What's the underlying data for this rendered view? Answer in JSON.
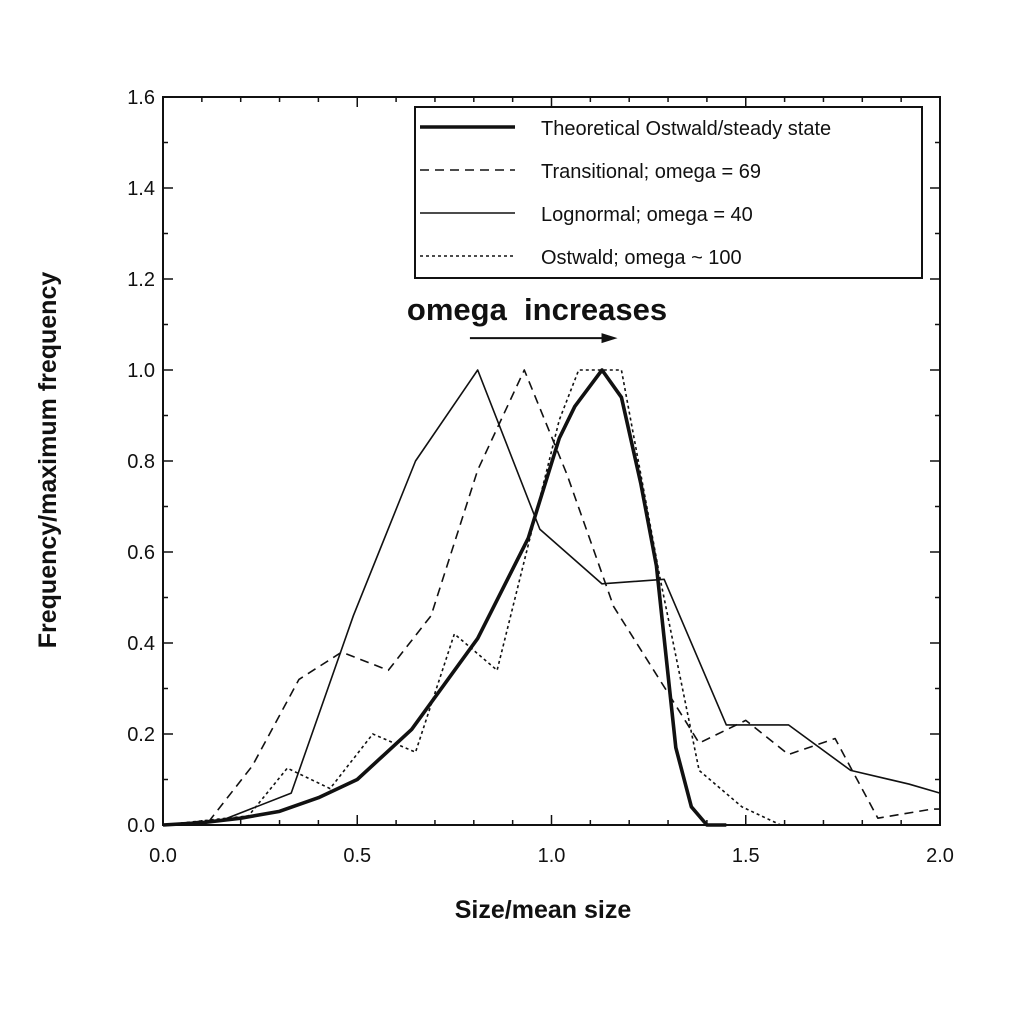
{
  "chart_data": {
    "type": "line",
    "title": "",
    "xlabel": "Size/mean size",
    "ylabel": "Frequency/maximum frequency",
    "xlim": [
      0,
      2.0
    ],
    "ylim": [
      0,
      1.6
    ],
    "x_ticks": [
      "0.0",
      "0.5",
      "1.0",
      "1.5",
      "2.0"
    ],
    "y_ticks": [
      "0.0",
      "0.2",
      "0.4",
      "0.6",
      "0.8",
      "1.0",
      "1.2",
      "1.4",
      "1.6"
    ],
    "grid": false,
    "legend_position": "top-right",
    "annotation": {
      "text": "omega  increases",
      "arrow_from": [
        0.79,
        1.07
      ],
      "arrow_to": [
        1.17,
        1.07
      ]
    },
    "series": [
      {
        "name": "Theoretical Ostwald/steady state",
        "style": "thick-solid",
        "x": [
          0.0,
          0.1,
          0.2,
          0.3,
          0.4,
          0.5,
          0.64,
          0.81,
          0.94,
          1.02,
          1.06,
          1.13,
          1.18,
          1.23,
          1.27,
          1.32,
          1.36,
          1.4,
          1.45
        ],
        "y": [
          0.0,
          0.005,
          0.015,
          0.03,
          0.06,
          0.1,
          0.21,
          0.41,
          0.63,
          0.85,
          0.92,
          1.0,
          0.94,
          0.75,
          0.57,
          0.17,
          0.04,
          0.0,
          0.0
        ]
      },
      {
        "name": "Transitional; omega = 69",
        "style": "dashed",
        "x": [
          0.0,
          0.12,
          0.23,
          0.35,
          0.46,
          0.58,
          0.69,
          0.81,
          0.93,
          1.04,
          1.16,
          1.3,
          1.38,
          1.5,
          1.61,
          1.73,
          1.84,
          1.98,
          2.0
        ],
        "y": [
          0.0,
          0.01,
          0.13,
          0.32,
          0.38,
          0.34,
          0.46,
          0.78,
          1.0,
          0.77,
          0.48,
          0.29,
          0.18,
          0.23,
          0.155,
          0.19,
          0.015,
          0.035,
          0.035
        ]
      },
      {
        "name": "Lognormal; omega = 40",
        "style": "solid",
        "x": [
          0.0,
          0.15,
          0.33,
          0.49,
          0.65,
          0.81,
          0.97,
          1.13,
          1.29,
          1.45,
          1.61,
          1.77,
          1.92,
          2.0
        ],
        "y": [
          0.0,
          0.01,
          0.07,
          0.46,
          0.8,
          1.0,
          0.65,
          0.53,
          0.54,
          0.22,
          0.22,
          0.12,
          0.09,
          0.07
        ]
      },
      {
        "name": "Ostwald; omega ~ 100",
        "style": "dotted",
        "x": [
          0.0,
          0.22,
          0.32,
          0.43,
          0.54,
          0.65,
          0.75,
          0.86,
          1.02,
          1.07,
          1.18,
          1.28,
          1.38,
          1.49,
          1.59
        ],
        "y": [
          0.0,
          0.02,
          0.125,
          0.08,
          0.2,
          0.16,
          0.42,
          0.34,
          0.89,
          1.0,
          1.0,
          0.54,
          0.12,
          0.04,
          0.0
        ]
      }
    ]
  }
}
